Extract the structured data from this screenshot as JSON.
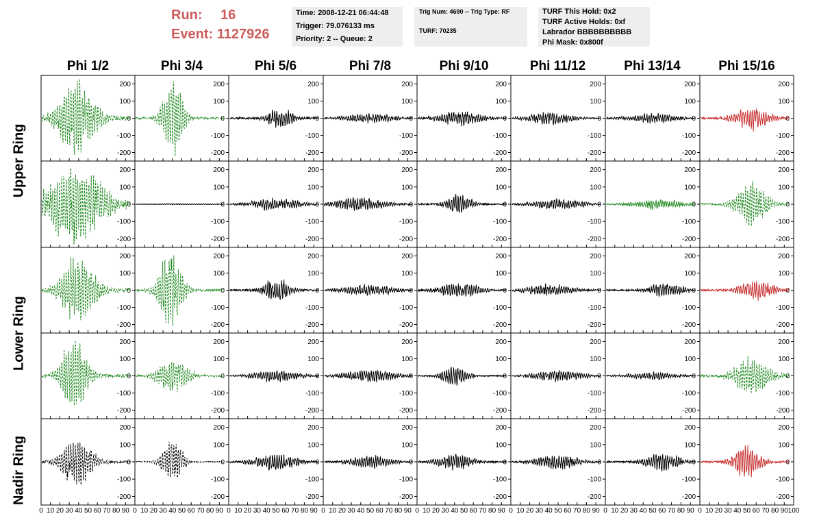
{
  "header": {
    "run_label": "Run:",
    "run_value": "16",
    "event_label": "Event:",
    "event_value": "1127926"
  },
  "info_time": {
    "time": "Time: 2008-12-21 06:44:48",
    "trigger": "Trigger: 79.076133 ms",
    "priority": "Priority: 2 -- Queue: 2"
  },
  "info_trig": {
    "trig": "Trig Num: 4690 -- Trig Type: RF",
    "turf": "TURF: 70235"
  },
  "info_turf": {
    "hold": "TURF This Hold: 0x2",
    "active": "TURF Active Holds: 0xf",
    "labrador": "Labrador BBBBBBBBBB",
    "phimask": "Phi Mask: 0x800f"
  },
  "columns": [
    "Phi 1/2",
    "Phi 3/4",
    "Phi 5/6",
    "Phi 7/8",
    "Phi 9/10",
    "Phi 11/12",
    "Phi 13/14",
    "Phi 15/16"
  ],
  "ring_labels": [
    "Upper Ring",
    "Lower Ring",
    "Nadir Ring"
  ],
  "chart_data": {
    "type": "line",
    "xlim": [
      0,
      100
    ],
    "ylim": [
      -250,
      250
    ],
    "y_ticks": [
      -200,
      -100,
      0,
      100,
      200
    ],
    "x_ticks": [
      0,
      10,
      20,
      30,
      40,
      50,
      60,
      70,
      80,
      90,
      100
    ],
    "colors": {
      "green": "#228b22",
      "red": "#c83232",
      "black": "#000000"
    },
    "panels": [
      [
        {
          "color": "green",
          "dashed": true,
          "peak_amp": 220,
          "center": 38,
          "width": 22,
          "noise": 40
        },
        {
          "color": "green",
          "dashed": true,
          "peak_amp": 240,
          "center": 40,
          "width": 12,
          "noise": 20
        },
        {
          "color": "black",
          "dashed": false,
          "peak_amp": 55,
          "center": 55,
          "width": 15,
          "noise": 20
        },
        {
          "color": "black",
          "dashed": false,
          "peak_amp": 25,
          "center": 50,
          "width": 30,
          "noise": 10
        },
        {
          "color": "black",
          "dashed": false,
          "peak_amp": 40,
          "center": 45,
          "width": 25,
          "noise": 15
        },
        {
          "color": "black",
          "dashed": false,
          "peak_amp": 35,
          "center": 40,
          "width": 25,
          "noise": 12
        },
        {
          "color": "black",
          "dashed": false,
          "peak_amp": 25,
          "center": 50,
          "width": 30,
          "noise": 10
        },
        {
          "color": "red",
          "dashed": false,
          "peak_amp": 65,
          "center": 55,
          "width": 20,
          "noise": 20
        }
      ],
      [
        {
          "color": "green",
          "dashed": true,
          "peak_amp": 240,
          "center": 38,
          "width": 30,
          "noise": 60
        },
        {
          "color": "black",
          "dashed": false,
          "peak_amp": 3,
          "center": 50,
          "width": 50,
          "noise": 1
        },
        {
          "color": "black",
          "dashed": false,
          "peak_amp": 30,
          "center": 50,
          "width": 30,
          "noise": 12
        },
        {
          "color": "black",
          "dashed": false,
          "peak_amp": 35,
          "center": 40,
          "width": 30,
          "noise": 12
        },
        {
          "color": "black",
          "dashed": false,
          "peak_amp": 55,
          "center": 45,
          "width": 15,
          "noise": 15
        },
        {
          "color": "black",
          "dashed": false,
          "peak_amp": 30,
          "center": 50,
          "width": 30,
          "noise": 10
        },
        {
          "color": "green",
          "dashed": false,
          "peak_amp": 25,
          "center": 55,
          "width": 30,
          "noise": 10
        },
        {
          "color": "green",
          "dashed": true,
          "peak_amp": 130,
          "center": 55,
          "width": 18,
          "noise": 20
        }
      ],
      [
        {
          "color": "green",
          "dashed": true,
          "peak_amp": 200,
          "center": 40,
          "width": 20,
          "noise": 35
        },
        {
          "color": "green",
          "dashed": true,
          "peak_amp": 230,
          "center": 38,
          "width": 14,
          "noise": 25
        },
        {
          "color": "black",
          "dashed": false,
          "peak_amp": 70,
          "center": 50,
          "width": 15,
          "noise": 18
        },
        {
          "color": "black",
          "dashed": false,
          "peak_amp": 30,
          "center": 50,
          "width": 30,
          "noise": 12
        },
        {
          "color": "black",
          "dashed": false,
          "peak_amp": 40,
          "center": 45,
          "width": 25,
          "noise": 14
        },
        {
          "color": "black",
          "dashed": false,
          "peak_amp": 30,
          "center": 40,
          "width": 30,
          "noise": 12
        },
        {
          "color": "black",
          "dashed": false,
          "peak_amp": 40,
          "center": 65,
          "width": 20,
          "noise": 14
        },
        {
          "color": "red",
          "dashed": false,
          "peak_amp": 55,
          "center": 60,
          "width": 20,
          "noise": 18
        }
      ],
      [
        {
          "color": "green",
          "dashed": true,
          "peak_amp": 210,
          "center": 35,
          "width": 16,
          "noise": 30
        },
        {
          "color": "green",
          "dashed": true,
          "peak_amp": 100,
          "center": 40,
          "width": 18,
          "noise": 20
        },
        {
          "color": "black",
          "dashed": false,
          "peak_amp": 30,
          "center": 50,
          "width": 30,
          "noise": 10
        },
        {
          "color": "black",
          "dashed": false,
          "peak_amp": 35,
          "center": 50,
          "width": 30,
          "noise": 12
        },
        {
          "color": "black",
          "dashed": false,
          "peak_amp": 60,
          "center": 40,
          "width": 15,
          "noise": 12
        },
        {
          "color": "black",
          "dashed": false,
          "peak_amp": 30,
          "center": 50,
          "width": 30,
          "noise": 10
        },
        {
          "color": "black",
          "dashed": false,
          "peak_amp": 20,
          "center": 50,
          "width": 30,
          "noise": 8
        },
        {
          "color": "green",
          "dashed": true,
          "peak_amp": 110,
          "center": 55,
          "width": 20,
          "noise": 25
        }
      ],
      [
        {
          "color": "black",
          "dashed": true,
          "peak_amp": 140,
          "center": 38,
          "width": 18,
          "noise": 25
        },
        {
          "color": "black",
          "dashed": true,
          "peak_amp": 140,
          "center": 40,
          "width": 12,
          "noise": 10
        },
        {
          "color": "black",
          "dashed": false,
          "peak_amp": 45,
          "center": 50,
          "width": 25,
          "noise": 15
        },
        {
          "color": "black",
          "dashed": false,
          "peak_amp": 35,
          "center": 50,
          "width": 25,
          "noise": 12
        },
        {
          "color": "black",
          "dashed": false,
          "peak_amp": 45,
          "center": 40,
          "width": 20,
          "noise": 15
        },
        {
          "color": "black",
          "dashed": false,
          "peak_amp": 40,
          "center": 50,
          "width": 25,
          "noise": 14
        },
        {
          "color": "black",
          "dashed": false,
          "peak_amp": 50,
          "center": 60,
          "width": 20,
          "noise": 15
        },
        {
          "color": "red",
          "dashed": false,
          "peak_amp": 100,
          "center": 50,
          "width": 15,
          "noise": 20
        }
      ]
    ]
  }
}
